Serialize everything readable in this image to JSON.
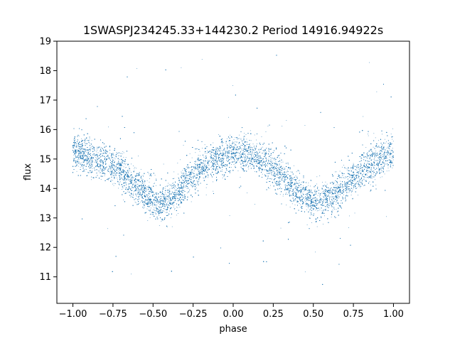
{
  "chart_data": {
    "type": "scatter",
    "title": "1SWASPJ234245.33+144230.2 Period 14916.94922s",
    "xlabel": "phase",
    "ylabel": "flux",
    "xlim": [
      -1.1,
      1.1
    ],
    "ylim": [
      10.1,
      19.0
    ],
    "x_ticks": [
      -1.0,
      -0.75,
      -0.5,
      -0.25,
      0.0,
      0.25,
      0.5,
      0.75,
      1.0
    ],
    "x_tick_labels": [
      "−1.00",
      "−0.75",
      "−0.50",
      "−0.25",
      "0.00",
      "0.25",
      "0.50",
      "0.75",
      "1.00"
    ],
    "y_ticks": [
      11,
      12,
      13,
      14,
      15,
      16,
      17,
      18,
      19
    ],
    "y_tick_labels": [
      "11",
      "12",
      "13",
      "14",
      "15",
      "16",
      "17",
      "18",
      "19"
    ],
    "grid": false,
    "legend": "none",
    "marker_color": "#1f77b4",
    "series": [
      {
        "name": "",
        "x_range": [
          -1.0,
          1.0
        ],
        "profile": {
          "phase": [
            -1.0,
            -0.9,
            -0.8,
            -0.7,
            -0.6,
            -0.5,
            -0.45,
            -0.4,
            -0.3,
            -0.2,
            -0.1,
            0.0,
            0.05,
            0.1,
            0.2,
            0.3,
            0.4,
            0.5,
            0.55,
            0.6,
            0.7,
            0.8,
            0.9,
            1.0
          ],
          "flux": [
            15.2,
            15.1,
            14.9,
            14.6,
            14.1,
            13.6,
            13.5,
            13.6,
            14.2,
            14.7,
            15.0,
            15.15,
            15.2,
            15.15,
            14.9,
            14.5,
            13.9,
            13.5,
            13.5,
            13.6,
            14.1,
            14.6,
            15.0,
            15.2
          ]
        },
        "scatter_sigma": 0.3,
        "outlier_range": [
          10.6,
          18.6
        ],
        "approx_point_count": 24000
      }
    ]
  }
}
